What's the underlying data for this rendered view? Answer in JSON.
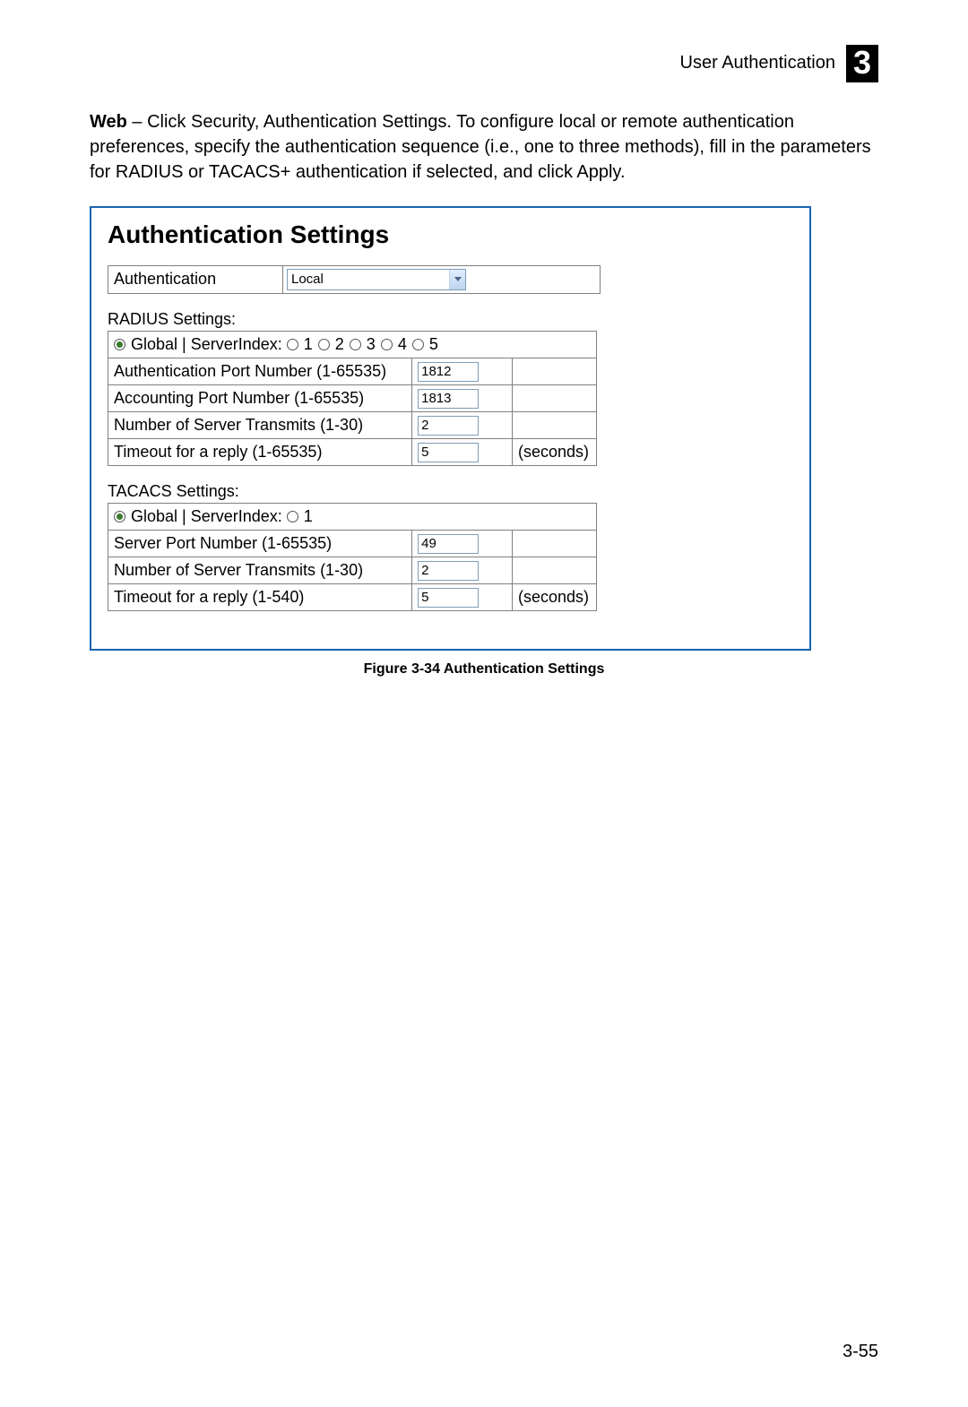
{
  "header": {
    "section": "User Authentication",
    "chapter": "3"
  },
  "intro": {
    "bold": "Web",
    "rest": " – Click Security, Authentication Settings. To configure local or remote authentication preferences, specify the authentication sequence (i.e., one to three methods), fill in the parameters for RADIUS or TACACS+ authentication if selected, and click Apply."
  },
  "panel": {
    "title": "Authentication Settings",
    "auth_label": "Authentication",
    "auth_value": "Local"
  },
  "radius": {
    "section_label": "RADIUS Settings:",
    "scope_row": {
      "global_label": "Global",
      "server_index_label": "ServerIndex:",
      "options": [
        "1",
        "2",
        "3",
        "4",
        "5"
      ],
      "global_selected": true,
      "index_selected": null
    },
    "rows": [
      {
        "label": "Authentication Port Number (1-65535)",
        "value": "1812",
        "unit": ""
      },
      {
        "label": "Accounting Port Number (1-65535)",
        "value": "1813",
        "unit": ""
      },
      {
        "label": "Number of Server Transmits (1-30)",
        "value": "2",
        "unit": ""
      },
      {
        "label": "Timeout for a reply (1-65535)",
        "value": "5",
        "unit": "(seconds)"
      }
    ]
  },
  "tacacs": {
    "section_label": "TACACS Settings:",
    "scope_row": {
      "global_label": "Global",
      "server_index_label": "ServerIndex:",
      "options": [
        "1"
      ],
      "global_selected": true,
      "index_selected": null
    },
    "rows": [
      {
        "label": "Server Port Number (1-65535)",
        "value": "49",
        "unit": ""
      },
      {
        "label": "Number of Server Transmits (1-30)",
        "value": "2",
        "unit": ""
      },
      {
        "label": "Timeout for a reply (1-540)",
        "value": "5",
        "unit": "(seconds)"
      }
    ]
  },
  "figure_caption": "Figure 3-34  Authentication Settings",
  "page_number": "3-55",
  "colors": {
    "panel_border": "#1b63b0",
    "cell_border": "#808080",
    "input_border": "#7f9db9",
    "text": "#000000",
    "bg": "#ffffff"
  }
}
